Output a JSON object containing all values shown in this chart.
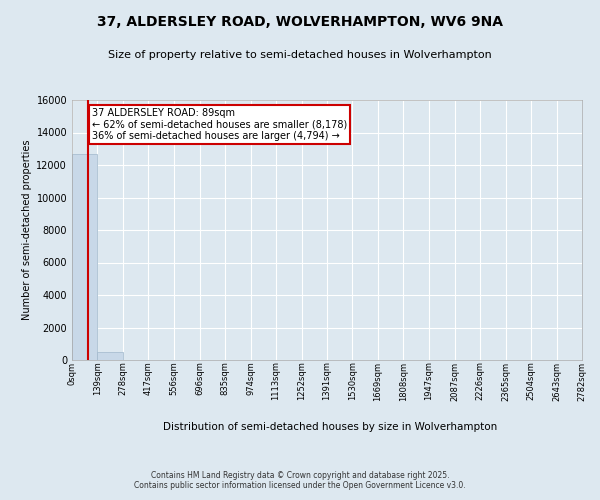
{
  "title": "37, ALDERSLEY ROAD, WOLVERHAMPTON, WV6 9NA",
  "subtitle": "Size of property relative to semi-detached houses in Wolverhampton",
  "xlabel": "Distribution of semi-detached houses by size in Wolverhampton",
  "ylabel": "Number of semi-detached properties",
  "bin_edges": [
    0,
    139,
    278,
    417,
    556,
    696,
    835,
    974,
    1113,
    1252,
    1391,
    1530,
    1669,
    1808,
    1947,
    2087,
    2226,
    2365,
    2504,
    2643,
    2782
  ],
  "bar_heights": [
    12700,
    500,
    0,
    0,
    0,
    0,
    0,
    0,
    0,
    0,
    0,
    0,
    0,
    0,
    0,
    0,
    0,
    0,
    0,
    0
  ],
  "bar_color": "#c8d8e8",
  "bar_edgecolor": "#a0b8cc",
  "property_size": 89,
  "property_label": "37 ALDERSLEY ROAD: 89sqm",
  "pct_smaller": 62,
  "count_smaller": 8178,
  "pct_larger": 36,
  "count_larger": 4794,
  "vline_color": "#cc0000",
  "annotation_box_color": "#cc0000",
  "ylim": [
    0,
    16000
  ],
  "yticks": [
    0,
    2000,
    4000,
    6000,
    8000,
    10000,
    12000,
    14000,
    16000
  ],
  "bg_color": "#dde8f0",
  "grid_color": "#ffffff",
  "footer_line1": "Contains HM Land Registry data © Crown copyright and database right 2025.",
  "footer_line2": "Contains public sector information licensed under the Open Government Licence v3.0."
}
